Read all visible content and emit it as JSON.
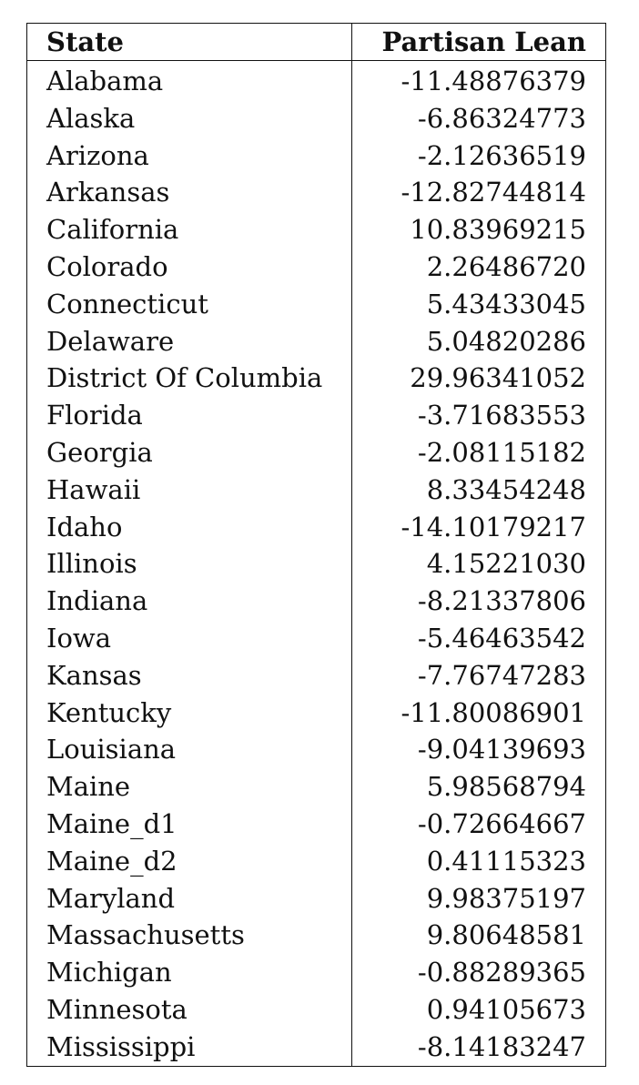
{
  "table": {
    "headers": [
      "State",
      "Partisan Lean"
    ],
    "rows": [
      [
        "Alabama",
        "-11.48876379"
      ],
      [
        "Alaska",
        "-6.86324773"
      ],
      [
        "Arizona",
        "-2.12636519"
      ],
      [
        "Arkansas",
        "-12.82744814"
      ],
      [
        "California",
        "10.83969215"
      ],
      [
        "Colorado",
        "2.26486720"
      ],
      [
        "Connecticut",
        "5.43433045"
      ],
      [
        "Delaware",
        "5.04820286"
      ],
      [
        "District Of Columbia",
        "29.96341052"
      ],
      [
        "Florida",
        "-3.71683553"
      ],
      [
        "Georgia",
        "-2.08115182"
      ],
      [
        "Hawaii",
        "8.33454248"
      ],
      [
        "Idaho",
        "-14.10179217"
      ],
      [
        "Illinois",
        "4.15221030"
      ],
      [
        "Indiana",
        "-8.21337806"
      ],
      [
        "Iowa",
        "-5.46463542"
      ],
      [
        "Kansas",
        "-7.76747283"
      ],
      [
        "Kentucky",
        "-11.80086901"
      ],
      [
        "Louisiana",
        "-9.04139693"
      ],
      [
        "Maine",
        "5.98568794"
      ],
      [
        "Maine_d1",
        "-0.72664667"
      ],
      [
        "Maine_d2",
        "0.41115323"
      ],
      [
        "Maryland",
        "9.98375197"
      ],
      [
        "Massachusetts",
        "9.80648581"
      ],
      [
        "Michigan",
        "-0.88289365"
      ],
      [
        "Minnesota",
        "0.94105673"
      ],
      [
        "Mississippi",
        "-8.14183247"
      ]
    ]
  }
}
